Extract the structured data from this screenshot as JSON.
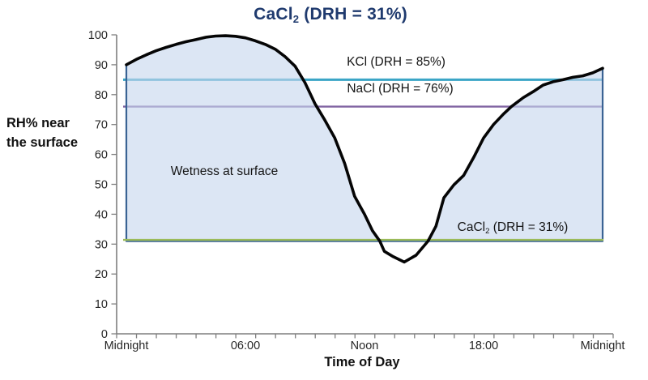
{
  "title": {
    "prefix": "CaCl",
    "sub": "2",
    "suffix": " (DRH = 31%)",
    "color": "#1f3a6e"
  },
  "y_axis": {
    "label_line1": "RH% near",
    "label_line2": "the surface"
  },
  "x_axis": {
    "label": "Time of Day"
  },
  "annotations": {
    "kcl_label": "KCl (DRH = 85%)",
    "nacl_label": "NaCl (DRH = 76%)",
    "area_label": "Wetness at surface",
    "cacl2": {
      "prefix": "CaCl",
      "sub": "2",
      "suffix": " (DRH = 31%)"
    }
  },
  "chart_data": {
    "type": "area",
    "title": "CaCl₂ (DRH = 31%)",
    "xlabel": "Time of Day",
    "ylabel": "RH% near the surface",
    "xlim": [
      0,
      24
    ],
    "ylim": [
      0,
      100
    ],
    "grid": false,
    "legend": "none",
    "y_ticks": [
      0,
      10,
      20,
      30,
      40,
      50,
      60,
      70,
      80,
      90,
      100
    ],
    "x_ticks": [
      {
        "t": 0,
        "label": "Midnight"
      },
      {
        "t": 6,
        "label": "06:00"
      },
      {
        "t": 12,
        "label": "Noon"
      },
      {
        "t": 18,
        "label": "18:00"
      },
      {
        "t": 24,
        "label": "Midnight"
      }
    ],
    "x_minor_tick_hours": 1,
    "series": [
      {
        "name": "RH% near the surface",
        "color": "#050505",
        "x": [
          0,
          0.5,
          1,
          1.5,
          2,
          2.5,
          3,
          3.5,
          4,
          4.5,
          5,
          5.5,
          6,
          6.5,
          7,
          7.5,
          8,
          8.5,
          9,
          9.5,
          10,
          10.5,
          11,
          11.5,
          12,
          12.4,
          12.77,
          13,
          13.45,
          14,
          14.6,
          15.2,
          15.6,
          16,
          16.5,
          17,
          17.5,
          18,
          18.5,
          19,
          19.4,
          20,
          20.5,
          21,
          21.5,
          22,
          22.5,
          23,
          23.5,
          24
        ],
        "y": [
          90,
          91.8,
          93.3,
          94.7,
          95.8,
          96.8,
          97.7,
          98.4,
          99.2,
          99.6,
          99.7,
          99.5,
          99,
          98,
          96.8,
          95.2,
          92.7,
          89.5,
          84,
          77,
          71.5,
          65.5,
          57,
          46,
          40,
          34.5,
          31,
          27.6,
          25.8,
          24,
          26.3,
          31,
          36,
          45.5,
          49.8,
          53,
          59,
          65.5,
          70,
          73.5,
          76,
          79,
          81,
          83.2,
          84.3,
          85,
          85.8,
          86.3,
          87.3,
          88.8
        ]
      }
    ],
    "reference_lines": [
      {
        "name": "KCl",
        "value": 85,
        "color": "#3aa5c6",
        "label": "KCl (DRH = 85%)"
      },
      {
        "name": "NaCl",
        "value": 76,
        "color": "#8064a2",
        "label": "NaCl (DRH = 76%)"
      },
      {
        "name": "CaCl2",
        "value": 31,
        "color": "#9bbb59",
        "label": "CaCl₂ (DRH = 31%)"
      }
    ],
    "area": {
      "label": "Wetness at surface",
      "baseline": 31,
      "fill": "#dce6f2",
      "border": "#3a6394"
    }
  }
}
